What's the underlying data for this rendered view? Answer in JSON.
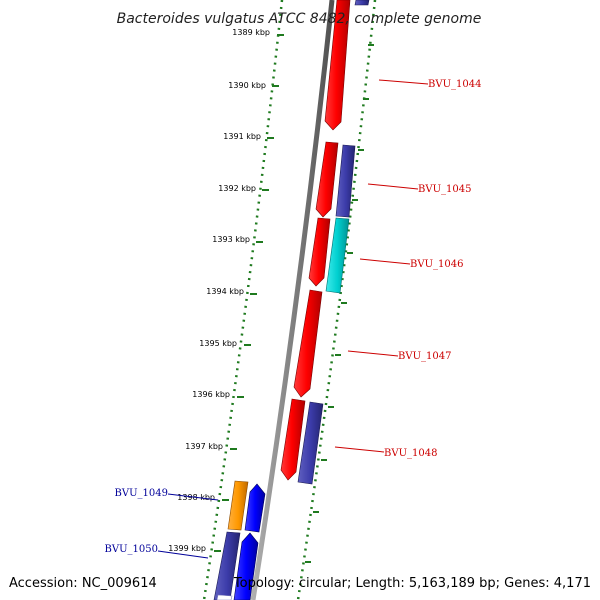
{
  "title": "Bacteroides vulgatus ATCC 8482, complete genome",
  "footer": {
    "accession": "Accession: NC_009614",
    "summary": "Topology: circular; Length: 5,163,189 bp; Genes: 4,171"
  },
  "kbp_ticks": [
    "1389 kbp",
    "1390 kbp",
    "1391 kbp",
    "1392 kbp",
    "1393 kbp",
    "1394 kbp",
    "1395 kbp",
    "1396 kbp",
    "1397 kbp",
    "1398 kbp",
    "1399 kbp"
  ],
  "gene_labels": [
    {
      "id": "BVU_1044",
      "side": "right"
    },
    {
      "id": "BVU_1045",
      "side": "right"
    },
    {
      "id": "BVU_1046",
      "side": "right"
    },
    {
      "id": "BVU_1047",
      "side": "right"
    },
    {
      "id": "BVU_1048",
      "side": "right"
    },
    {
      "id": "BVU_1049",
      "side": "left"
    },
    {
      "id": "BVU_1050",
      "side": "left"
    }
  ],
  "colors": {
    "backbone": "#808080",
    "dots": "#1f7a1f",
    "forward_gene": "#ff0000",
    "reverse_gene": "#3c3caa",
    "cyan_gene": "#00d0d0",
    "orange_gene": "#ff9900",
    "blue_gene": "#0000ff",
    "right_label": "#cc0000",
    "left_label": "#000099"
  }
}
